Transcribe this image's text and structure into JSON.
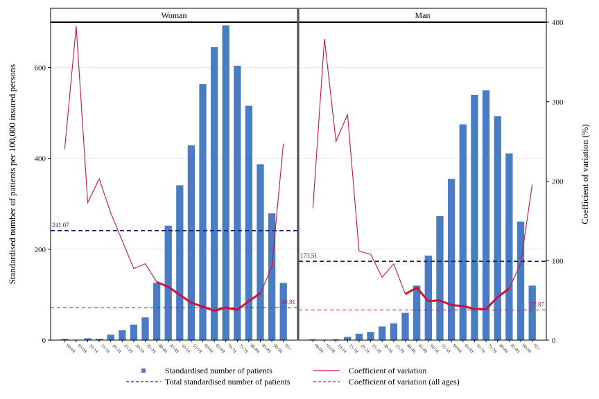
{
  "chart_data": {
    "type": "bar",
    "panels": [
      "Woman",
      "Man"
    ],
    "categories": [
      "00-04",
      "05-09",
      "10-14",
      "15-19",
      "20-24",
      "25-29",
      "30-34",
      "35-39",
      "40-44",
      "45-49",
      "50-54",
      "55-59",
      "60-64",
      "65-69",
      "70-74",
      "75-79",
      "80-84",
      "85-89",
      "90-94",
      "95+"
    ],
    "ylabel": "Standardised number of patients per 100,000 insured persons",
    "y2label": "Coefficient of variation (%)",
    "ylim": [
      0,
      700
    ],
    "y2lim": [
      0,
      400
    ],
    "yticks": [
      0,
      200,
      400,
      600
    ],
    "y2ticks": [
      0,
      100,
      200,
      300,
      400
    ],
    "series": [
      {
        "name": "Standardised number of patients",
        "axis": "left",
        "kind": "bar",
        "color": "#4a7cc4",
        "panels": {
          "Woman": [
            3,
            1,
            4,
            3,
            12,
            22,
            34,
            50,
            126,
            252,
            341,
            429,
            564,
            645,
            693,
            604,
            516,
            387,
            279,
            126
          ],
          "Man": [
            2,
            1,
            2,
            7,
            14,
            18,
            30,
            37,
            60,
            120,
            186,
            273,
            355,
            475,
            540,
            550,
            493,
            411,
            261,
            120
          ]
        }
      },
      {
        "name": "Coefficient of variation",
        "axis": "right",
        "kind": "line",
        "color": "#d0103a",
        "panels": {
          "Woman": [
            240,
            395,
            173,
            203,
            160,
            125,
            90,
            96,
            73,
            67,
            57,
            47,
            42,
            37,
            41,
            38,
            49,
            59,
            92,
            247
          ],
          "Man": [
            166,
            379,
            250,
            284,
            112,
            108,
            79,
            96,
            58,
            66,
            49,
            50,
            44,
            43,
            39,
            39,
            54,
            65,
            96,
            196
          ]
        },
        "bold_range": [
          "40-44",
          "85-89"
        ]
      }
    ],
    "reference_lines": [
      {
        "name": "Total standardised number of patients",
        "axis": "left",
        "style": "dashed",
        "color": "#1a1a7a",
        "values": {
          "Woman": 241.07,
          "Man": 173.51
        },
        "labels": {
          "Woman": "241.07",
          "Man": "173.51"
        }
      },
      {
        "name": "Coefficient of variation (all ages)",
        "axis": "right",
        "style": "dashed",
        "color": "#c8163c",
        "values": {
          "Woman": 40.81,
          "Man": 37.87
        },
        "labels": {
          "Woman": "40.81",
          "Man": "37.87"
        }
      }
    ],
    "legend": {
      "position": "bottom",
      "items": [
        {
          "label": "Standardised number of patients",
          "marker": "square",
          "color": "#4a7cc4"
        },
        {
          "label": "Coefficient of variation",
          "marker": "line",
          "color": "#d0103a"
        },
        {
          "label": "Total standardised number of patients",
          "marker": "dashed",
          "color": "#1a1a7a"
        },
        {
          "label": "Coefficient of variation (all ages)",
          "marker": "dashed",
          "color": "#c8163c"
        }
      ]
    },
    "grid": true
  }
}
